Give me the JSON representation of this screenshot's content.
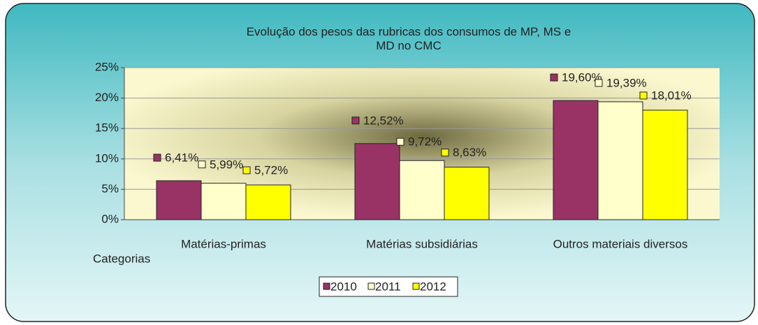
{
  "chart_data": {
    "type": "bar",
    "title": "Evolução dos pesos das rubricas dos consumos de MP, MS e MD no CMC",
    "x_axis_label": "Categorias",
    "categories": [
      "Matérias-primas",
      "Matérias subsidiárias",
      "Outros materiais diversos"
    ],
    "series": [
      {
        "name": "2010",
        "color": "#993366",
        "values": [
          6.41,
          12.52,
          19.6
        ],
        "value_labels": [
          "6,41%",
          "12,52%",
          "19,60%"
        ]
      },
      {
        "name": "2011",
        "color": "#ffffcc",
        "values": [
          5.99,
          9.72,
          19.39
        ],
        "value_labels": [
          "5,99%",
          "9,72%",
          "19,39%"
        ]
      },
      {
        "name": "2012",
        "color": "#ffff00",
        "values": [
          5.72,
          8.63,
          18.01
        ],
        "value_labels": [
          "5,72%",
          "8,63%",
          "18,01%"
        ]
      }
    ],
    "ylim": [
      0,
      25
    ],
    "yticks": [
      {
        "value": 0,
        "label": "0%"
      },
      {
        "value": 5,
        "label": "5%"
      },
      {
        "value": 10,
        "label": "10%"
      },
      {
        "value": 15,
        "label": "15%"
      },
      {
        "value": 20,
        "label": "20%"
      },
      {
        "value": 25,
        "label": "25%"
      }
    ],
    "grid": true
  }
}
